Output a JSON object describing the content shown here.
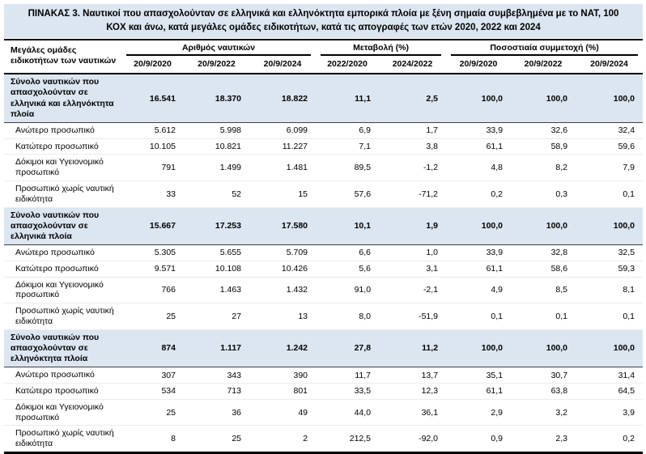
{
  "title": "ΠΙΝΑΚΑΣ 3. Ναυτικοί που απασχολούνταν σε ελληνικά και ελληνόκτητα εμπορικά πλοία με ξένη σημαία συμβεβλημένα με το ΝΑΤ, 100 ΚΟΧ και άνω, κατά μεγάλες ομάδες ειδικοτήτων, κατά τις απογραφές των ετών 2020, 2022 και 2024",
  "colors": {
    "band_background": "#dce6f1",
    "border_dark": "#000000",
    "row_divider": "#ececec"
  },
  "table": {
    "stub_header": "Μεγάλες ομάδες ειδικοτήτων των ναυτικών",
    "groups": [
      {
        "label": "Αριθμός ναυτικών",
        "cols": [
          "20/9/2020",
          "20/9/2022",
          "20/9/2024"
        ]
      },
      {
        "label": "Μεταβολή (%)",
        "cols": [
          "2022/2020",
          "2024/2022"
        ]
      },
      {
        "label": "Ποσοστιαία συμμετοχή (%)",
        "cols": [
          "20/9/2020",
          "20/9/2022",
          "20/9/2024"
        ]
      }
    ],
    "sections": [
      {
        "total": {
          "label": "Σύνολο ναυτικών που απασχολούνταν σε ελληνικά και ελληνόκτητα πλοία",
          "values": [
            "16.541",
            "18.370",
            "18.822",
            "11,1",
            "2,5",
            "100,0",
            "100,0",
            "100,0"
          ]
        },
        "rows": [
          {
            "label": "Ανώτερο προσωπικό",
            "values": [
              "5.612",
              "5.998",
              "6.099",
              "6,9",
              "1,7",
              "33,9",
              "32,6",
              "32,4"
            ]
          },
          {
            "label": "Κατώτερο προσωπικό",
            "values": [
              "10.105",
              "10.821",
              "11.227",
              "7,1",
              "3,8",
              "61,1",
              "58,9",
              "59,6"
            ]
          },
          {
            "label": "Δόκιμοι και Υγειονομικό προσωπικό",
            "values": [
              "791",
              "1.499",
              "1.481",
              "89,5",
              "-1,2",
              "4,8",
              "8,2",
              "7,9"
            ]
          },
          {
            "label": "Προσωπικό χωρίς ναυτική ειδικότητα",
            "values": [
              "33",
              "52",
              "15",
              "57,6",
              "-71,2",
              "0,2",
              "0,3",
              "0,1"
            ]
          }
        ]
      },
      {
        "total": {
          "label": "Σύνολο ναυτικών που απασχολούνταν σε ελληνικά πλοία",
          "values": [
            "15.667",
            "17.253",
            "17.580",
            "10,1",
            "1,9",
            "100,0",
            "100,0",
            "100,0"
          ]
        },
        "rows": [
          {
            "label": "Ανώτερο προσωπικό",
            "values": [
              "5.305",
              "5.655",
              "5.709",
              "6,6",
              "1,0",
              "33,9",
              "32,8",
              "32,5"
            ]
          },
          {
            "label": "Κατώτερο προσωπικό",
            "values": [
              "9.571",
              "10.108",
              "10.426",
              "5,6",
              "3,1",
              "61,1",
              "58,6",
              "59,3"
            ]
          },
          {
            "label": "Δόκιμοι και Υγειονομικό προσωπικό",
            "values": [
              "766",
              "1.463",
              "1.432",
              "91,0",
              "-2,1",
              "4,9",
              "8,5",
              "8,1"
            ]
          },
          {
            "label": "Προσωπικό χωρίς ναυτική ειδικότητα",
            "values": [
              "25",
              "27",
              "13",
              "8,0",
              "-51,9",
              "0,1",
              "0,1",
              "0,1"
            ]
          }
        ]
      },
      {
        "total": {
          "label": "Σύνολο ναυτικών που απασχολούνταν σε ελληνόκτητα πλοία",
          "values": [
            "874",
            "1.117",
            "1.242",
            "27,8",
            "11,2",
            "100,0",
            "100,0",
            "100,0"
          ]
        },
        "rows": [
          {
            "label": "Ανώτερο προσωπικό",
            "values": [
              "307",
              "343",
              "390",
              "11,7",
              "13,7",
              "35,1",
              "30,7",
              "31,4"
            ]
          },
          {
            "label": "Κατώτερο προσωπικό",
            "values": [
              "534",
              "713",
              "801",
              "33,5",
              "12,3",
              "61,1",
              "63,8",
              "64,5"
            ]
          },
          {
            "label": "Δόκιμοι και Υγειονομικό προσωπικό",
            "values": [
              "25",
              "36",
              "49",
              "44,0",
              "36,1",
              "2,9",
              "3,2",
              "3,9"
            ]
          },
          {
            "label": "Προσωπικό χωρίς ναυτική ειδικότητα",
            "values": [
              "8",
              "25",
              "2",
              "212,5",
              "-92,0",
              "0,9",
              "2,3",
              "0,2"
            ]
          }
        ]
      }
    ]
  }
}
